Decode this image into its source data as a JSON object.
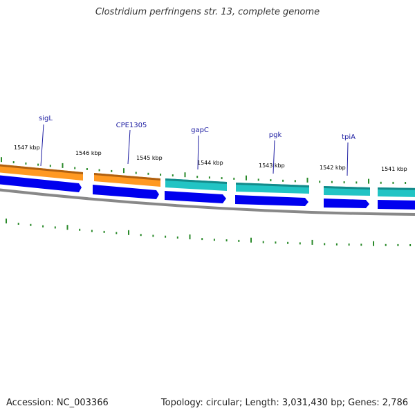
{
  "title": "Clostridium perfringens str. 13, complete genome",
  "footer": {
    "accession": "Accession: NC_003366",
    "summary": "Topology: circular; Length: 3,031,430 bp; Genes: 2,786"
  },
  "colors": {
    "backbone": "#888888",
    "tick": "#2a8a2a",
    "strand_fwd_orange": "#ff9922",
    "strand_fwd_teal": "#22c4c4",
    "strand_rev_blue": "#0000ee",
    "gene_label": "#1a1aa0",
    "scale_label": "#111111"
  },
  "scale_labels": [
    "1547 kbp",
    "1546 kbp",
    "1545 kbp",
    "1544 kbp",
    "1543 kbp",
    "1542 kbp",
    "1541 kbp"
  ],
  "genes": [
    "sigL",
    "CPE1305",
    "gapC",
    "pgk",
    "tpiA"
  ],
  "feature_track_colors": [
    "strand_fwd_orange",
    "strand_fwd_orange",
    "strand_fwd_teal",
    "strand_fwd_teal",
    "strand_fwd_teal",
    "strand_fwd_teal"
  ],
  "lower_track_color": "strand_rev_blue"
}
